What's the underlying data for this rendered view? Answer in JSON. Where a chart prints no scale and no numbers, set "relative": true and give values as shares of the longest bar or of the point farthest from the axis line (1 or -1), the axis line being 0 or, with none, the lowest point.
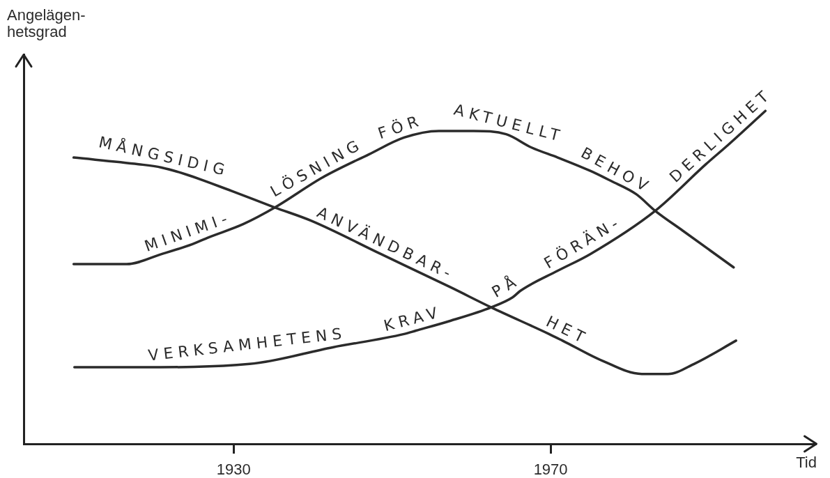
{
  "chart_data": {
    "type": "line",
    "xlabel": "Tid",
    "ylabel": "Angelägen-\nhetsgrad",
    "relative": true,
    "xlim": [
      1903.5,
      2003.5
    ],
    "xticks": [
      1930,
      1970
    ],
    "marker": "none",
    "line_style": "solid",
    "series": [
      {
        "color": "#2b2b2b",
        "x": [
          1909.8,
          1918.0,
          1920.9,
          1923.9,
          1929.7,
          1935.2,
          1939.8,
          1948.6,
          1957.4,
          1962.5,
          1969.8,
          1971.5,
          1976.5,
          1981.5,
          1984.8,
          1988.1,
          1993.4
        ],
        "values": [
          0.86,
          0.84,
          0.83,
          0.81,
          0.76,
          0.71,
          0.67,
          0.57,
          0.47,
          0.41,
          0.33,
          0.31,
          0.25,
          0.21,
          0.21,
          0.24,
          0.31
        ]
      },
      {
        "color": "#2b2b2b",
        "x": [
          1909.8,
          1916.5,
          1920.9,
          1924.8,
          1926.8,
          1931.2,
          1935.2,
          1941.2,
          1947.1,
          1951.5,
          1955.9,
          1960.3,
          1964.4,
          1967.6,
          1970.9,
          1975.0,
          1977.6,
          1980.8,
          1983.2,
          1986.7,
          1993.1
        ],
        "values": [
          0.54,
          0.54,
          0.57,
          0.6,
          0.62,
          0.66,
          0.71,
          0.8,
          0.87,
          0.92,
          0.94,
          0.94,
          0.93,
          0.89,
          0.86,
          0.82,
          0.79,
          0.75,
          0.7,
          0.64,
          0.53
        ]
      },
      {
        "color": "#2b2b2b",
        "x": [
          1909.9,
          1918.0,
          1932.0,
          1942.5,
          1951.5,
          1953.0,
          1957.4,
          1962.5,
          1965.2,
          1966.2,
          1970.9,
          1975.0,
          1983.2,
          1989.6,
          1992.5,
          1997.1
        ],
        "values": [
          0.23,
          0.23,
          0.24,
          0.29,
          0.33,
          0.34,
          0.37,
          0.41,
          0.44,
          0.46,
          0.52,
          0.57,
          0.7,
          0.84,
          0.9,
          1.0
        ]
      }
    ],
    "annotations": [
      {
        "text": "MÅNGSIDIG",
        "x": 1920.9,
        "y": 0.83
      },
      {
        "text": "ANVÄNDBAR-",
        "x": 1948.6,
        "y": 0.57
      },
      {
        "text": "HET",
        "x": 1971.5,
        "y": 0.31
      },
      {
        "text": "MINIMI-",
        "x": 1924.8,
        "y": 0.6
      },
      {
        "text": "LÖSNING",
        "x": 1941.2,
        "y": 0.8
      },
      {
        "text": "FÖR",
        "x": 1951.5,
        "y": 0.92
      },
      {
        "text": "AKTUELLT",
        "x": 1964.4,
        "y": 0.93
      },
      {
        "text": "BEHOV",
        "x": 1977.6,
        "y": 0.79
      },
      {
        "text": "VERKSAMHETENS",
        "x": 1932.0,
        "y": 0.24
      },
      {
        "text": "KRAV",
        "x": 1953.0,
        "y": 0.34
      },
      {
        "text": "PÅ",
        "x": 1965.2,
        "y": 0.44
      },
      {
        "text": "FÖRÄN-",
        "x": 1975.0,
        "y": 0.57
      },
      {
        "text": "DERLIGHET",
        "x": 1992.5,
        "y": 0.9
      }
    ]
  }
}
